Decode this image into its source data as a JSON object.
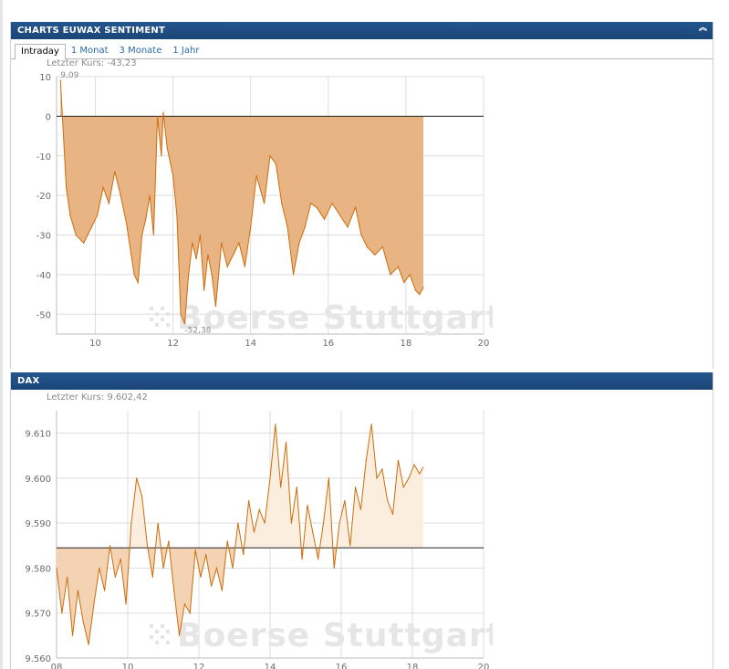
{
  "sentiment_panel": {
    "title": "CHARTS EUWAX SENTIMENT",
    "tabs": [
      {
        "label": "Intraday",
        "active": true
      },
      {
        "label": "1 Monat",
        "active": false
      },
      {
        "label": "3 Monate",
        "active": false
      },
      {
        "label": "1 Jahr",
        "active": false
      }
    ],
    "last_price_label": "Letzter Kurs: -43,23",
    "max_label": "9,09",
    "min_label": "-52,38"
  },
  "dax_panel": {
    "title": "DAX",
    "last_price_label": "Letzter Kurs:  9.602,42"
  },
  "watermark": "Boerse Stuttgart",
  "colors": {
    "header": "#1f4f86",
    "sentiment_fill": "#e8b483",
    "line": "#cc6c0a",
    "dax_fill_below": "#f3d3b4",
    "dax_fill_above": "#fbeedf",
    "grid": "#dddddd"
  },
  "chart_data": [
    {
      "type": "area",
      "title": "CHARTS EUWAX SENTIMENT",
      "xlim": [
        9,
        20
      ],
      "ylim": [
        -55,
        10
      ],
      "x_ticks": [
        10,
        12,
        14,
        16,
        18,
        20
      ],
      "y_ticks": [
        10,
        0,
        -10,
        -20,
        -30,
        -40,
        -50
      ],
      "y_tick_labels": [
        "10",
        "0",
        "-10",
        "-20",
        "-30",
        "-40",
        "-50"
      ],
      "baseline": 0,
      "grid": true,
      "series": [
        {
          "x": [
            9.1,
            9.15,
            9.25,
            9.35,
            9.5,
            9.7,
            9.9,
            10.05,
            10.2,
            10.35,
            10.5,
            10.65,
            10.8,
            11.0,
            11.1,
            11.2,
            11.3,
            11.4,
            11.5,
            11.6,
            11.7,
            11.75,
            11.85,
            12.0,
            12.1,
            12.2,
            12.3,
            12.4,
            12.5,
            12.6,
            12.7,
            12.8,
            12.9,
            13.0,
            13.1,
            13.25,
            13.4,
            13.55,
            13.7,
            13.85,
            14.0,
            14.15,
            14.35,
            14.5,
            14.65,
            14.8,
            14.95,
            15.1,
            15.25,
            15.4,
            15.55,
            15.7,
            15.9,
            16.1,
            16.3,
            16.5,
            16.7,
            16.85,
            17.0,
            17.2,
            17.4,
            17.6,
            17.8,
            17.95,
            18.1,
            18.25,
            18.35,
            18.45
          ],
          "values": [
            9.09,
            0,
            -18,
            -25,
            -30,
            -32,
            -28,
            -25,
            -18,
            -22,
            -14,
            -20,
            -27,
            -40,
            -42,
            -30,
            -26,
            -20,
            -30,
            0,
            -10,
            1,
            -8,
            -15,
            -25,
            -50,
            -52.38,
            -40,
            -32,
            -36,
            -30,
            -44,
            -35,
            -40,
            -48,
            -32,
            -38,
            -35,
            -32,
            -38,
            -28,
            -15,
            -22,
            -10,
            -12,
            -22,
            -28,
            -40,
            -32,
            -28,
            -22,
            -23,
            -26,
            -22,
            -25,
            -28,
            -23,
            -30,
            -33,
            -35,
            -33,
            -40,
            -38,
            -42,
            -40,
            -44,
            -45,
            -43.23
          ]
        }
      ]
    },
    {
      "type": "area",
      "title": "DAX",
      "xlim": [
        8,
        20
      ],
      "ylim": [
        9560,
        9615
      ],
      "x_ticks": [
        8,
        10,
        12,
        14,
        16,
        18,
        20
      ],
      "y_ticks": [
        9610,
        9600,
        9590,
        9580,
        9570,
        9560
      ],
      "y_tick_labels": [
        "9.610",
        "9.600",
        "9.590",
        "9.580",
        "9.570",
        "9.560"
      ],
      "baseline": 9584.5,
      "grid": true,
      "series": [
        {
          "x": [
            8.0,
            8.15,
            8.3,
            8.45,
            8.6,
            8.75,
            8.9,
            9.05,
            9.2,
            9.35,
            9.5,
            9.65,
            9.8,
            9.95,
            10.1,
            10.25,
            10.4,
            10.55,
            10.7,
            10.85,
            11.0,
            11.15,
            11.3,
            11.45,
            11.6,
            11.75,
            11.9,
            12.05,
            12.2,
            12.35,
            12.5,
            12.65,
            12.8,
            12.95,
            13.1,
            13.25,
            13.4,
            13.55,
            13.7,
            13.85,
            14.0,
            14.15,
            14.3,
            14.45,
            14.6,
            14.75,
            14.9,
            15.05,
            15.2,
            15.35,
            15.5,
            15.65,
            15.8,
            15.95,
            16.1,
            16.25,
            16.4,
            16.55,
            16.7,
            16.85,
            17.0,
            17.15,
            17.3,
            17.45,
            17.6,
            17.75,
            17.9,
            18.05,
            18.2,
            18.3
          ],
          "values": [
            9580,
            9570,
            9578,
            9565,
            9575,
            9568,
            9563,
            9572,
            9580,
            9575,
            9585,
            9578,
            9582,
            9572,
            9590,
            9600,
            9596,
            9585,
            9578,
            9590,
            9580,
            9586,
            9575,
            9565,
            9572,
            9570,
            9584,
            9578,
            9583,
            9576,
            9580,
            9575,
            9586,
            9580,
            9590,
            9583,
            9595,
            9588,
            9593,
            9590,
            9600,
            9612,
            9598,
            9608,
            9590,
            9598,
            9582,
            9594,
            9588,
            9582,
            9590,
            9600,
            9580,
            9590,
            9595,
            9585,
            9598,
            9593,
            9604,
            9612,
            9600,
            9602,
            9595,
            9592,
            9604,
            9598,
            9600,
            9603,
            9601,
            9602.42
          ]
        }
      ]
    }
  ]
}
